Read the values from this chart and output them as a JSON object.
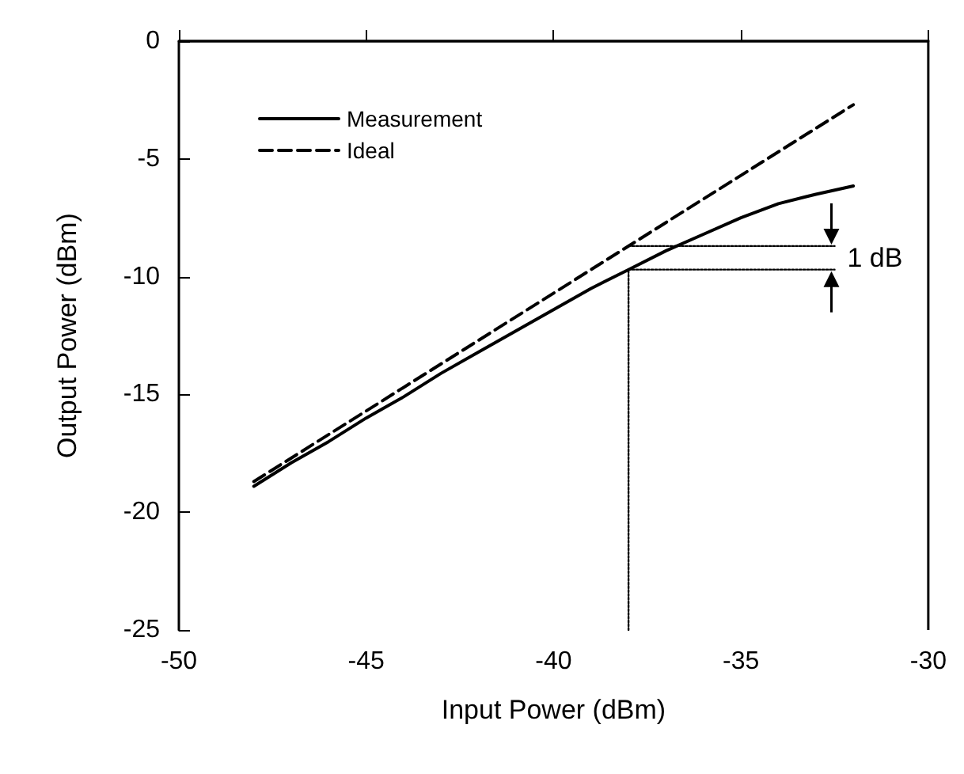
{
  "chart_data": {
    "type": "line",
    "xlabel": "Input Power (dBm)",
    "ylabel": "Output Power (dBm)",
    "xlim": [
      -50,
      -30
    ],
    "xticks": [
      -50,
      -45,
      -40,
      -35,
      -30
    ],
    "ylim": [
      -25,
      0
    ],
    "yticks": [
      -25,
      -20,
      -15,
      -10,
      -5,
      0
    ],
    "grid": false,
    "legend": "top left",
    "marker": "none",
    "series": [
      {
        "name": "Measurement",
        "color": "#000000",
        "line_style": "solid",
        "x": [
          -48,
          -47,
          -46,
          -45,
          -44,
          -43,
          -42,
          -41,
          -40,
          -39,
          -38,
          -37,
          -36,
          -35,
          -34,
          -33,
          -32
        ],
        "values": [
          -18.9,
          -17.9,
          -17.0,
          -16.0,
          -15.1,
          -14.1,
          -13.2,
          -12.3,
          -11.4,
          -10.5,
          -9.7,
          -8.9,
          -8.2,
          -7.5,
          -6.9,
          -6.5,
          -6.15
        ]
      },
      {
        "name": "Ideal",
        "color": "#000000",
        "line_style": "dashed",
        "x": [
          -48,
          -32
        ],
        "values": [
          -18.7,
          -2.7
        ]
      },
      {
        "color": "#000000",
        "line_style": "dotted",
        "x": [
          -38,
          -38
        ],
        "values": [
          -25,
          -9.7
        ]
      },
      {
        "color": "#000000",
        "line_style": "dotted",
        "x": [
          -38,
          -32.5
        ],
        "values": [
          -8.7,
          -8.7
        ]
      },
      {
        "color": "#000000",
        "line_style": "dotted",
        "x": [
          -38,
          -32.5
        ],
        "values": [
          -9.7,
          -9.7
        ]
      }
    ],
    "annotations": [
      "1 dB"
    ]
  }
}
